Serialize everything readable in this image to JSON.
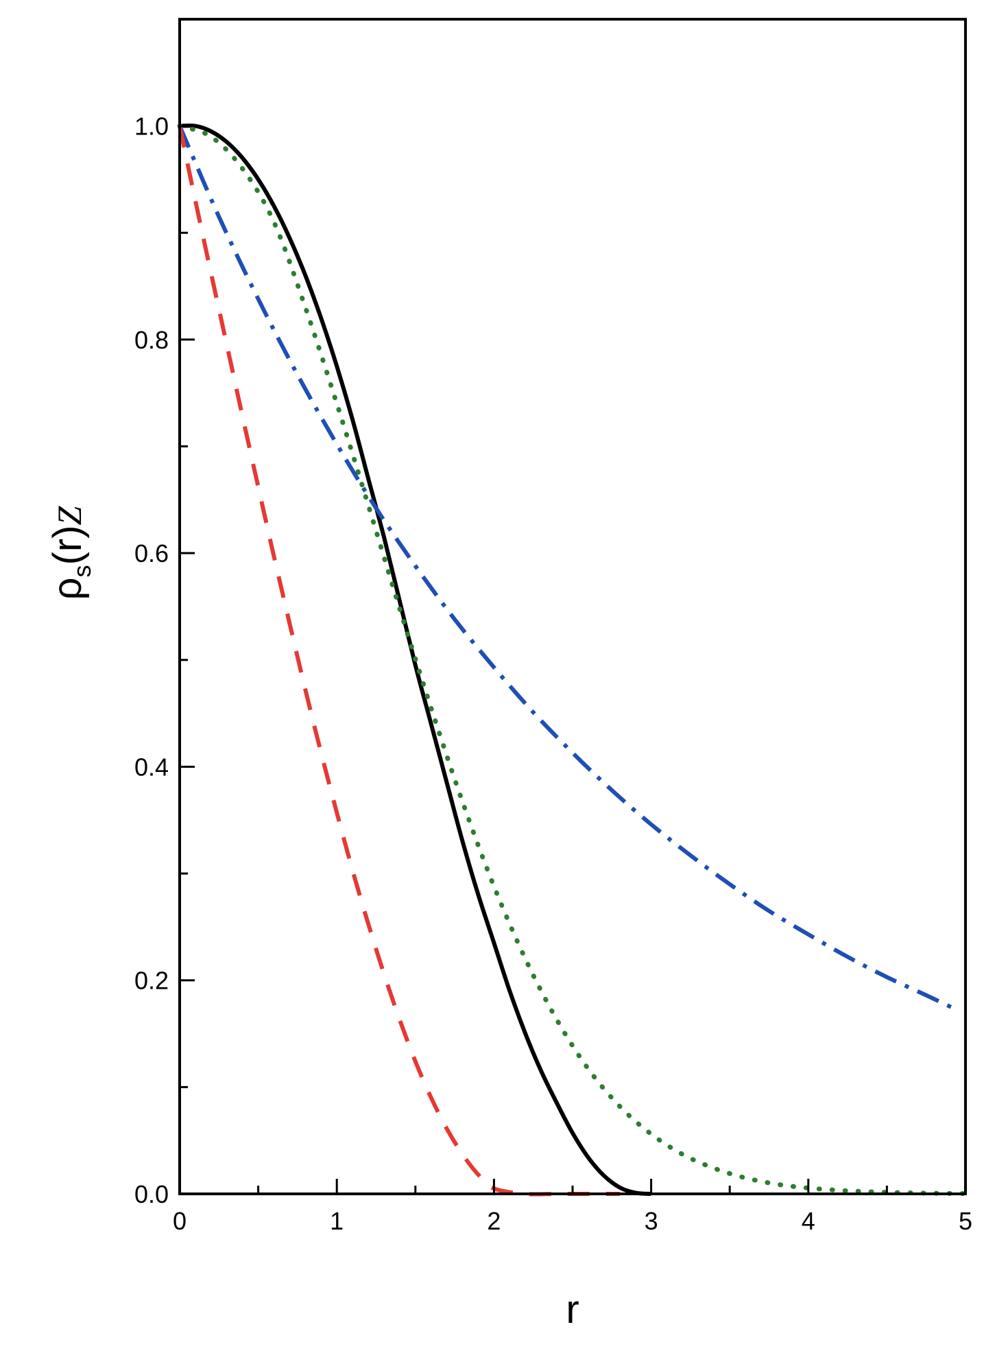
{
  "chart_data": {
    "type": "line",
    "title": "",
    "xlabel": "r",
    "ylabel": {
      "main": "ρ",
      "subscript": "s",
      "args": "(r)",
      "suffix": "Z"
    },
    "xlim": [
      0,
      5
    ],
    "ylim": [
      0,
      1.1
    ],
    "x_ticks": [
      0,
      1,
      2,
      3,
      4,
      5
    ],
    "x_tick_labels": [
      "0",
      "1",
      "2",
      "3",
      "4",
      "5"
    ],
    "x_minor_ticks": [
      0.5,
      1.5,
      2.5,
      3.5,
      4.5
    ],
    "y_ticks": [
      0.0,
      0.2,
      0.4,
      0.6,
      0.8,
      1.0
    ],
    "y_tick_labels": [
      "0.0",
      "0.2",
      "0.4",
      "0.6",
      "0.8",
      "1.0"
    ],
    "y_minor_ticks": [
      0.1,
      0.3,
      0.5,
      0.7,
      0.9
    ],
    "grid": false,
    "legend": "none",
    "series": [
      {
        "style": "solid",
        "color": "#000000",
        "x": [
          0,
          0.1,
          0.2,
          0.3,
          0.4,
          0.5,
          0.6,
          0.7,
          0.8,
          0.9,
          1.0,
          1.1,
          1.2,
          1.3,
          1.4,
          1.5,
          1.6,
          1.7,
          1.8,
          1.9,
          2.0,
          2.1,
          2.2,
          2.3,
          2.4,
          2.5,
          2.6,
          2.7,
          2.8,
          2.9,
          3.0
        ],
        "y": [
          1.0,
          1.0,
          0.995,
          0.985,
          0.97,
          0.95,
          0.925,
          0.895,
          0.86,
          0.82,
          0.775,
          0.725,
          0.67,
          0.615,
          0.555,
          0.495,
          0.44,
          0.385,
          0.33,
          0.28,
          0.235,
          0.19,
          0.15,
          0.115,
          0.085,
          0.057,
          0.034,
          0.017,
          0.006,
          0.001,
          0.0
        ]
      },
      {
        "style": "dotted",
        "color": "#2e7d32",
        "x": [
          0,
          0.2,
          0.4,
          0.6,
          0.8,
          1.0,
          1.2,
          1.4,
          1.6,
          1.8,
          2.0,
          2.2,
          2.4,
          2.6,
          2.8,
          3.0,
          3.2,
          3.4,
          3.6,
          3.8,
          4.0,
          4.2,
          4.4,
          4.6,
          4.8,
          5.0
        ],
        "y": [
          1.0,
          0.99,
          0.96,
          0.91,
          0.83,
          0.74,
          0.645,
          0.548,
          0.455,
          0.367,
          0.288,
          0.22,
          0.163,
          0.117,
          0.082,
          0.056,
          0.037,
          0.024,
          0.015,
          0.009,
          0.0055,
          0.0033,
          0.0019,
          0.0011,
          0.0006,
          0.0003
        ]
      },
      {
        "style": "dashdot",
        "color": "#1f4fb4",
        "x": [
          0,
          0.25,
          0.5,
          0.75,
          1.0,
          1.25,
          1.5,
          1.75,
          2.0,
          2.25,
          2.5,
          2.75,
          3.0,
          3.25,
          3.5,
          3.75,
          4.0,
          4.25,
          4.5,
          4.75,
          4.95
        ],
        "y": [
          1.0,
          0.915,
          0.838,
          0.767,
          0.702,
          0.642,
          0.588,
          0.538,
          0.493,
          0.451,
          0.413,
          0.378,
          0.346,
          0.317,
          0.29,
          0.265,
          0.243,
          0.222,
          0.203,
          0.186,
          0.172
        ]
      },
      {
        "style": "dashed",
        "color": "#e53935",
        "x": [
          0,
          0.1,
          0.2,
          0.3,
          0.4,
          0.5,
          0.6,
          0.7,
          0.8,
          0.9,
          1.0,
          1.1,
          1.2,
          1.3,
          1.4,
          1.5,
          1.6,
          1.7,
          1.8,
          1.9,
          2.0,
          2.2,
          2.4,
          2.6,
          2.8
        ],
        "y": [
          1.0,
          0.93,
          0.862,
          0.795,
          0.728,
          0.662,
          0.597,
          0.534,
          0.472,
          0.413,
          0.357,
          0.303,
          0.253,
          0.206,
          0.163,
          0.124,
          0.09,
          0.061,
          0.037,
          0.018,
          0.005,
          0.0,
          0.0,
          0.0,
          0.0
        ]
      }
    ]
  }
}
